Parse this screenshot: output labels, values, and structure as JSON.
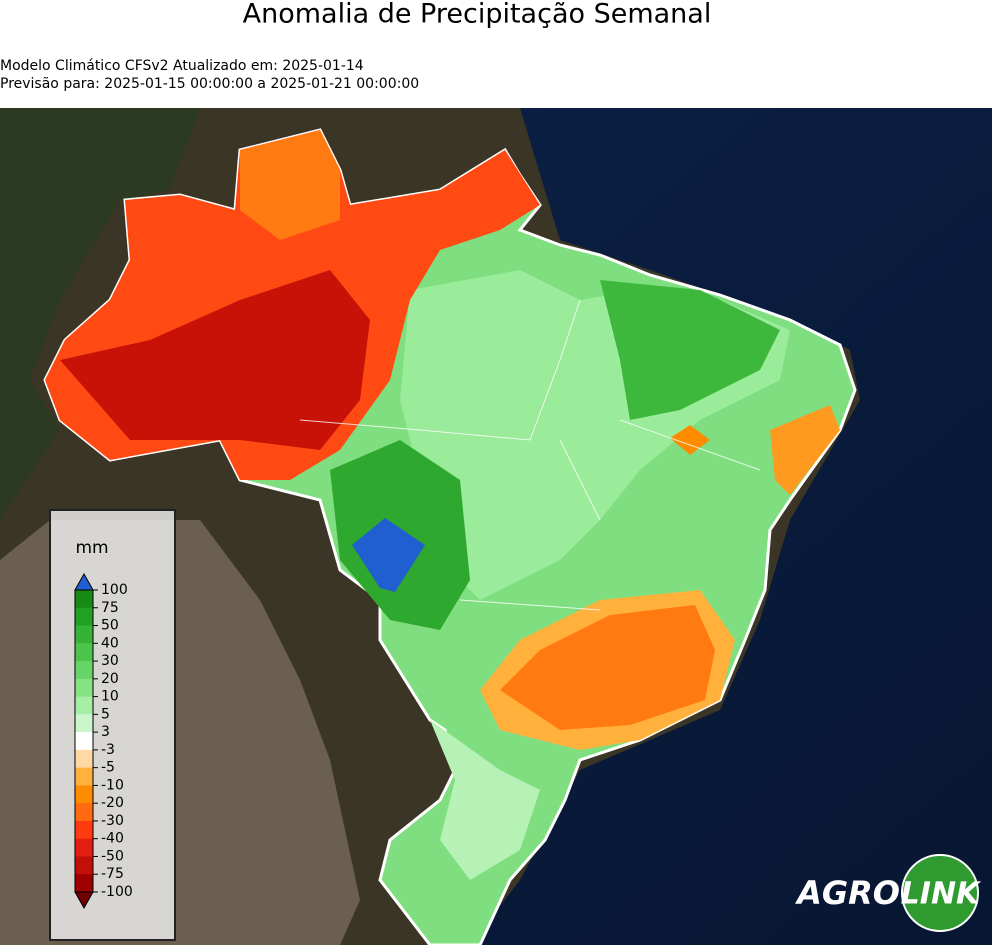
{
  "header": {
    "title": "Anomalia de Precipitação Semanal",
    "subtitle_lines": [
      "Modelo Climático CFSv2 Atualizado em: 2025-01-14",
      "Previsão para: 2025-01-15 00:00:00 a 2025-01-21 00:00:00"
    ]
  },
  "legend": {
    "label": "mm",
    "ticks": [
      100,
      75,
      50,
      40,
      30,
      20,
      10,
      5,
      3,
      -3,
      -5,
      -10,
      -20,
      -30,
      -40,
      -50,
      -75,
      -100
    ],
    "colors": [
      "#158a15",
      "#22a022",
      "#36b336",
      "#4cc44c",
      "#66d466",
      "#85e285",
      "#a6eea6",
      "#cbf6cb",
      "#ffffff",
      "#ffd9a3",
      "#ffb13c",
      "#ff8c00",
      "#ff6a12",
      "#ff3b12",
      "#e21f10",
      "#c20f08",
      "#9e0000"
    ],
    "over_color": "#1f5fd0",
    "under_color": "#6e0000"
  },
  "logo": {
    "left": "AGRO",
    "right": "LINK"
  }
}
